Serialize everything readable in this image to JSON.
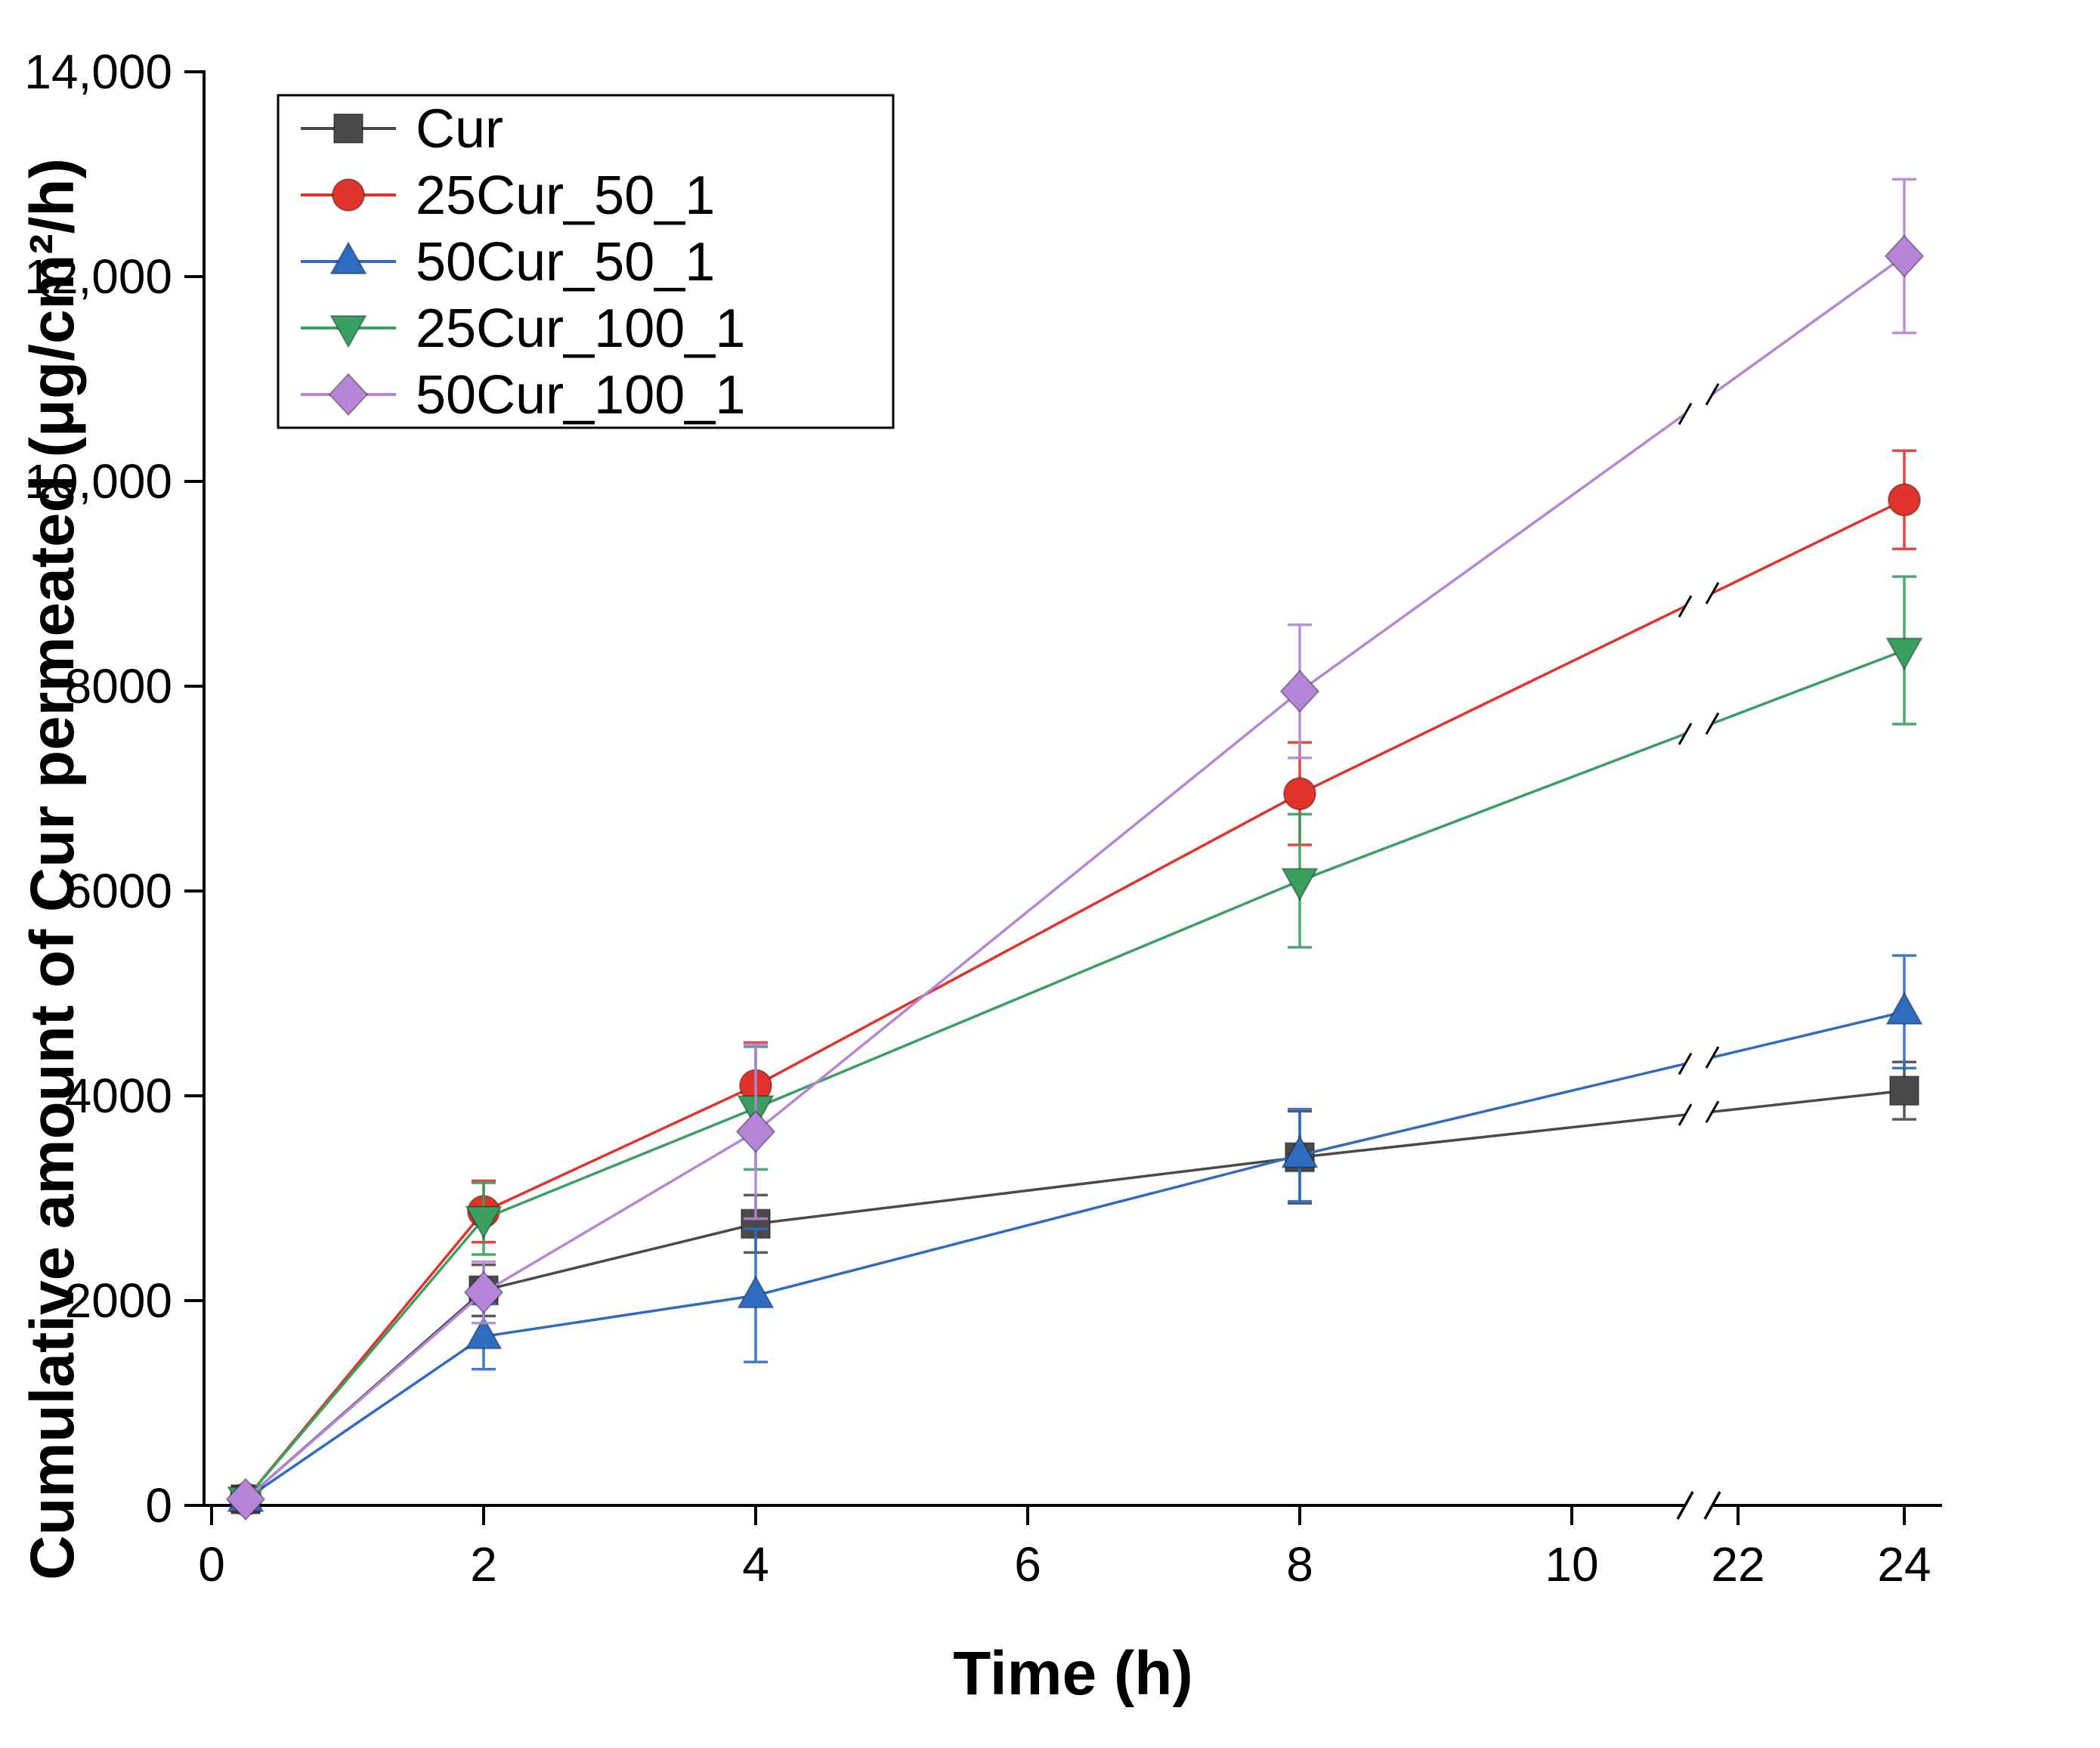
{
  "figure": {
    "background": "#ffffff"
  },
  "chart_data": {
    "type": "line",
    "title": "",
    "xlabel": "Time (h)",
    "ylabel": "Cumulative amount of Cur permeated (μg/cm²/h)",
    "ylim": [
      0,
      14000
    ],
    "x_axis_break": {
      "after": 10,
      "before": 22
    },
    "grid": false,
    "legend_position": "top-left",
    "x_ticks": [
      {
        "v": 0,
        "label": "0"
      },
      {
        "v": 2,
        "label": "2"
      },
      {
        "v": 4,
        "label": "4"
      },
      {
        "v": 6,
        "label": "6"
      },
      {
        "v": 8,
        "label": "8"
      },
      {
        "v": 10,
        "label": "10"
      },
      {
        "v": 22,
        "label": "22"
      },
      {
        "v": 24,
        "label": "24"
      }
    ],
    "y_ticks": [
      {
        "v": 0,
        "label": "0"
      },
      {
        "v": 2000,
        "label": "2000"
      },
      {
        "v": 4000,
        "label": "4000"
      },
      {
        "v": 6000,
        "label": "6000"
      },
      {
        "v": 8000,
        "label": "8000"
      },
      {
        "v": 10000,
        "label": "10,000"
      },
      {
        "v": 12000,
        "label": "12,000"
      },
      {
        "v": 14000,
        "label": "14,000"
      }
    ],
    "series": [
      {
        "name": "Cur",
        "marker": "square",
        "color": "#4a4a4a",
        "x": [
          0.25,
          2,
          4,
          8,
          24
        ],
        "y": [
          60,
          2100,
          2750,
          3400,
          4050
        ],
        "err": [
          0,
          250,
          280,
          450,
          280
        ]
      },
      {
        "name": "25Cur_50_1",
        "marker": "circle",
        "color": "#e0332b",
        "x": [
          0.25,
          2,
          4,
          8,
          24
        ],
        "y": [
          60,
          2870,
          4100,
          6950,
          9820
        ],
        "err": [
          0,
          300,
          420,
          500,
          480
        ]
      },
      {
        "name": "50Cur_50_1",
        "marker": "triangle-up",
        "color": "#2f6bbf",
        "x": [
          0.25,
          2,
          4,
          8,
          24
        ],
        "y": [
          60,
          1650,
          2050,
          3420,
          4820
        ],
        "err": [
          0,
          320,
          650,
          450,
          550
        ]
      },
      {
        "name": "25Cur_100_1",
        "marker": "triangle-down",
        "color": "#3aa061",
        "x": [
          0.25,
          2,
          4,
          8,
          24
        ],
        "y": [
          60,
          2800,
          3880,
          6100,
          8350
        ],
        "err": [
          0,
          350,
          600,
          650,
          720
        ]
      },
      {
        "name": "50Cur_100_1",
        "marker": "diamond",
        "color": "#b586d8",
        "x": [
          0.25,
          2,
          4,
          8,
          24
        ],
        "y": [
          60,
          2080,
          3650,
          7950,
          12200
        ],
        "err": [
          0,
          300,
          850,
          650,
          750
        ]
      }
    ]
  }
}
